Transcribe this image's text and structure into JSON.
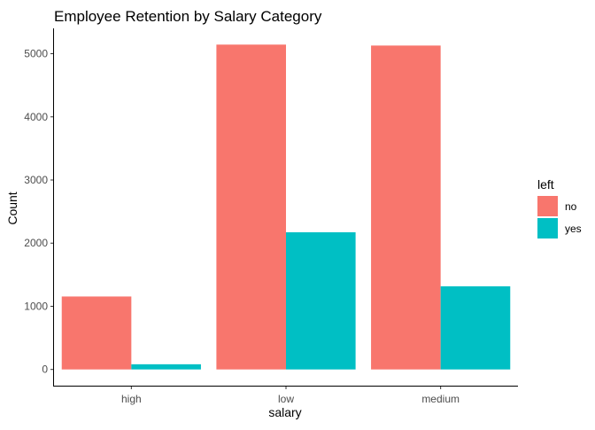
{
  "chart_data": {
    "type": "bar",
    "title": "Employee Retention by Salary Category",
    "xlabel": "salary",
    "ylabel": "Count",
    "categories": [
      "high",
      "low",
      "medium"
    ],
    "series": [
      {
        "name": "no",
        "color": "#F8766D",
        "values": [
          1155,
          5144,
          5129
        ]
      },
      {
        "name": "yes",
        "color": "#00BFC4",
        "values": [
          82,
          2172,
          1317
        ]
      }
    ],
    "yticks": [
      0,
      1000,
      2000,
      3000,
      4000,
      5000
    ],
    "ylim": [
      -257,
      5401
    ],
    "grid": false,
    "legend": {
      "title": "left",
      "position": "right"
    }
  }
}
